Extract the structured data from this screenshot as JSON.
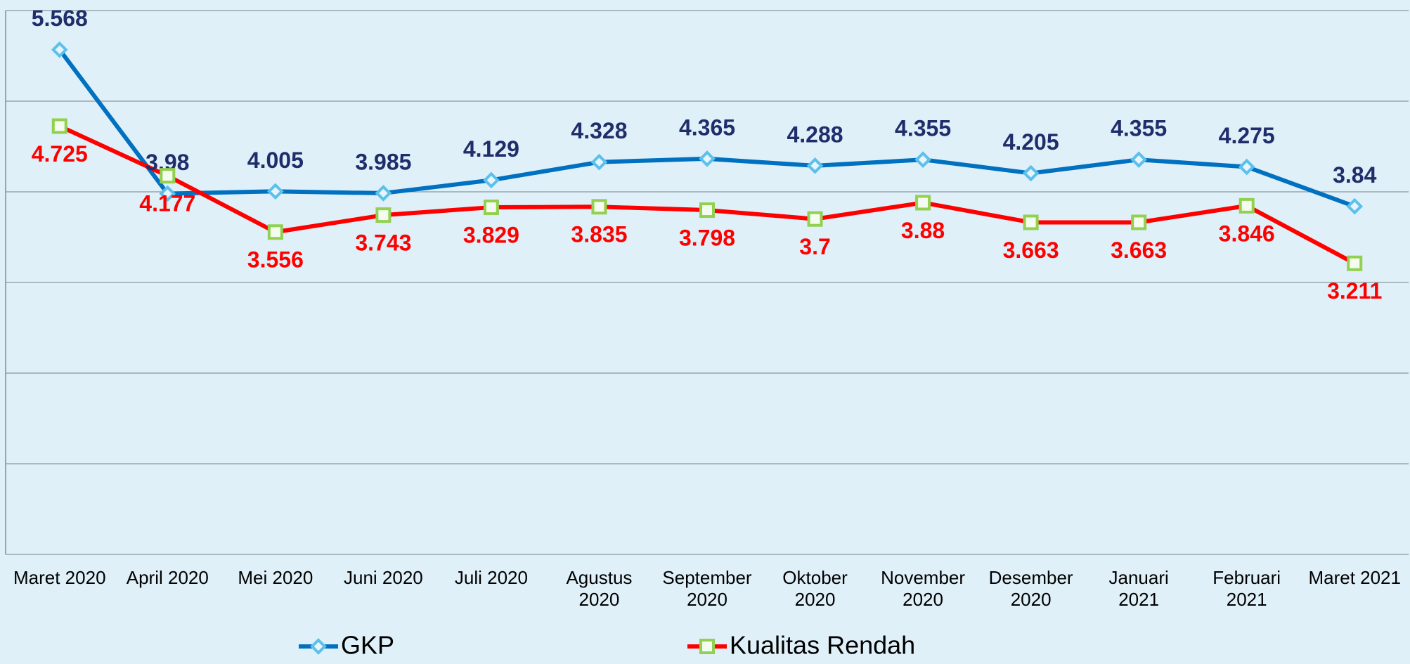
{
  "chart_data": {
    "type": "line",
    "categories": [
      "Maret 2020",
      "April 2020",
      "Mei 2020",
      "Juni 2020",
      "Juli 2020",
      "Agustus 2020",
      "September 2020",
      "Oktober 2020",
      "November 2020",
      "Desember 2020",
      "Januari 2021",
      "Februari 2021",
      "Maret 2021"
    ],
    "series": [
      {
        "name": "GKP",
        "color": "#0070c0",
        "values": [
          5.568,
          3.98,
          4.005,
          3.985,
          4.129,
          4.328,
          4.365,
          4.288,
          4.355,
          4.205,
          4.355,
          4.275,
          3.84
        ]
      },
      {
        "name": "Kualitas Rendah",
        "color": "#ff0000",
        "values": [
          4.725,
          4.177,
          3.556,
          3.743,
          3.829,
          3.835,
          3.798,
          3.7,
          3.88,
          3.663,
          3.663,
          3.846,
          3.211
        ]
      }
    ],
    "ylim": [
      0,
      6
    ],
    "yticks": [
      0,
      1,
      2,
      3,
      4,
      5,
      6
    ],
    "grid": true
  }
}
